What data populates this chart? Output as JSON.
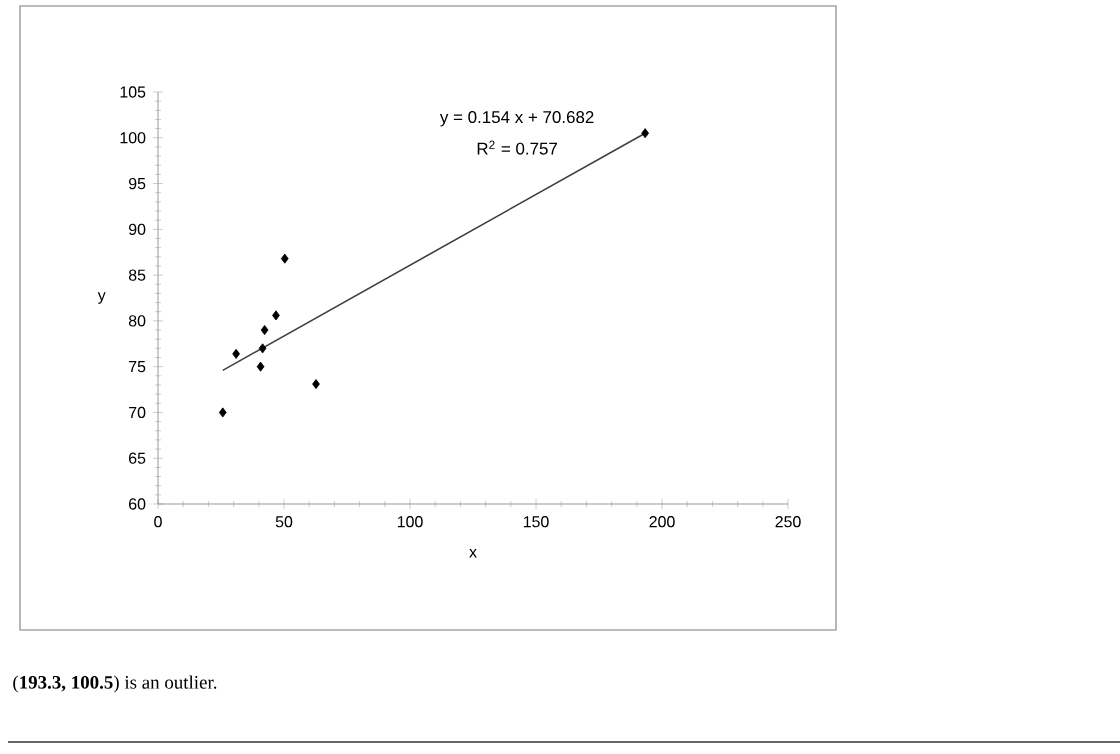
{
  "chart_data": {
    "type": "scatter",
    "xlabel": "x",
    "ylabel": "y",
    "xlim": [
      0,
      250
    ],
    "xticks": [
      0,
      50,
      100,
      150,
      200,
      250
    ],
    "ylim": [
      60,
      105
    ],
    "yticks": [
      60,
      65,
      70,
      75,
      80,
      85,
      90,
      95,
      100,
      105
    ],
    "grid": false,
    "marker": "diamond",
    "series": [
      {
        "color": "#000000",
        "x": [
          25.7,
          31.0,
          40.7,
          41.5,
          42.3,
          46.8,
          50.3,
          62.7,
          193.3
        ],
        "values": [
          70.0,
          76.4,
          75.0,
          77.0,
          79.0,
          80.6,
          86.8,
          73.1,
          100.5
        ]
      },
      {
        "type": "line",
        "color": "#404040",
        "marker": "none",
        "line_style": "solid",
        "x": [
          25.7,
          193.3
        ],
        "values": [
          74.6,
          100.5
        ]
      }
    ],
    "annotations": [
      "y = 0.154 x + 70.682",
      "R$^{2}$ = 0.757",
      "(**193.3, 100.5**) is an outlier."
    ]
  }
}
